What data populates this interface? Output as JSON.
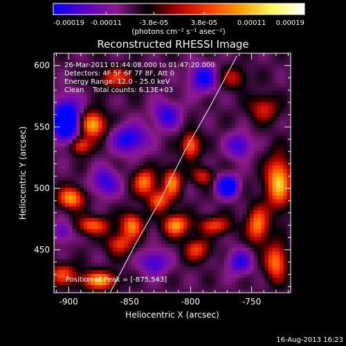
{
  "chart_data": {
    "type": "heatmap",
    "title": "Reconstructed RHESSI Image",
    "xlabel": "Heliocentric X (arcsec)",
    "ylabel": "Heliocentric Y (arcsec)",
    "xlim": [
      -912,
      -718
    ],
    "ylim": [
      415,
      610
    ],
    "x_ticks": [
      -900,
      -850,
      -800,
      -750
    ],
    "x_tick_labels": [
      "-900",
      "-850",
      "-800",
      "-750"
    ],
    "y_ticks": [
      450,
      500,
      550,
      600
    ],
    "y_tick_labels": [
      "450",
      "500",
      "550",
      "600"
    ],
    "colorbar": {
      "range": [
        -0.00019,
        0.00019
      ],
      "ticks": [
        -0.00019,
        -0.00011,
        -3.8e-05,
        3.8e-05,
        0.00011,
        0.00019
      ],
      "tick_labels": [
        "-0.00019",
        "-0.00011",
        "-3.8e-05",
        "3.8e-05",
        "0.00011",
        "0.00019"
      ],
      "unit_label": "(photons cm⁻² s⁻¹ asec⁻²)",
      "colors": [
        "#0000ff",
        "#5a00c8",
        "#8c1a8c",
        "#000000",
        "#b40000",
        "#ff4000",
        "#ffa000",
        "#ffff60",
        "#ffffff"
      ]
    },
    "limb_curve": {
      "points": [
        [
          -866,
          415
        ],
        [
          -845,
          455
        ],
        [
          -825,
          490
        ],
        [
          -805,
          530
        ],
        [
          -785,
          565
        ],
        [
          -762,
          608
        ]
      ]
    },
    "blobs": [
      {
        "x": -902,
        "y": 555,
        "amp": -1.0,
        "sx": 8,
        "sy": 12
      },
      {
        "x": -880,
        "y": 552,
        "amp": 1.0,
        "sx": 7,
        "sy": 7
      },
      {
        "x": -890,
        "y": 535,
        "amp": 0.7,
        "sx": 6,
        "sy": 5
      },
      {
        "x": -898,
        "y": 492,
        "amp": 0.9,
        "sx": 7,
        "sy": 6
      },
      {
        "x": -880,
        "y": 470,
        "amp": 0.7,
        "sx": 9,
        "sy": 5
      },
      {
        "x": -858,
        "y": 455,
        "amp": 0.6,
        "sx": 7,
        "sy": 6
      },
      {
        "x": -905,
        "y": 430,
        "amp": 0.6,
        "sx": 8,
        "sy": 6
      },
      {
        "x": -875,
        "y": 425,
        "amp": 0.9,
        "sx": 10,
        "sy": 5
      },
      {
        "x": -848,
        "y": 470,
        "amp": 0.8,
        "sx": 6,
        "sy": 7
      },
      {
        "x": -838,
        "y": 505,
        "amp": 0.8,
        "sx": 6,
        "sy": 7
      },
      {
        "x": -826,
        "y": 490,
        "amp": 0.7,
        "sx": 6,
        "sy": 6
      },
      {
        "x": -815,
        "y": 505,
        "amp": 0.8,
        "sx": 5,
        "sy": 8
      },
      {
        "x": -800,
        "y": 535,
        "amp": 0.8,
        "sx": 5,
        "sy": 7
      },
      {
        "x": -812,
        "y": 470,
        "amp": 0.9,
        "sx": 7,
        "sy": 6
      },
      {
        "x": -795,
        "y": 450,
        "amp": 0.6,
        "sx": 7,
        "sy": 6
      },
      {
        "x": -780,
        "y": 470,
        "amp": 0.6,
        "sx": 9,
        "sy": 5
      },
      {
        "x": -790,
        "y": 510,
        "amp": 0.5,
        "sx": 6,
        "sy": 5
      },
      {
        "x": -745,
        "y": 470,
        "amp": 0.8,
        "sx": 6,
        "sy": 10
      },
      {
        "x": -728,
        "y": 505,
        "amp": 1.0,
        "sx": 7,
        "sy": 14
      },
      {
        "x": -730,
        "y": 440,
        "amp": 0.8,
        "sx": 6,
        "sy": 10
      },
      {
        "x": -740,
        "y": 565,
        "amp": 0.5,
        "sx": 8,
        "sy": 7
      },
      {
        "x": -765,
        "y": 590,
        "amp": 0.4,
        "sx": 8,
        "sy": 6
      },
      {
        "x": -860,
        "y": 590,
        "amp": 0.5,
        "sx": 12,
        "sy": 6
      },
      {
        "x": -770,
        "y": 502,
        "amp": -0.9,
        "sx": 6,
        "sy": 6
      },
      {
        "x": -850,
        "y": 540,
        "amp": -0.6,
        "sx": 10,
        "sy": 8
      },
      {
        "x": -870,
        "y": 505,
        "amp": -0.5,
        "sx": 8,
        "sy": 8
      },
      {
        "x": -790,
        "y": 590,
        "amp": -0.6,
        "sx": 8,
        "sy": 8
      },
      {
        "x": -830,
        "y": 440,
        "amp": -0.5,
        "sx": 8,
        "sy": 7
      },
      {
        "x": -760,
        "y": 440,
        "amp": -0.5,
        "sx": 7,
        "sy": 7
      },
      {
        "x": -905,
        "y": 465,
        "amp": -0.4,
        "sx": 6,
        "sy": 6
      },
      {
        "x": -760,
        "y": 535,
        "amp": -0.5,
        "sx": 7,
        "sy": 7
      },
      {
        "x": -820,
        "y": 560,
        "amp": -0.5,
        "sx": 8,
        "sy": 8
      }
    ]
  },
  "annotations": {
    "time_range": "26-Mar-2011 01:44:08.000 to 01:47:20.000",
    "detectors": "Detectors: 4F 5F 6F 7F 8F, Att 0",
    "energy_range": "Energy Range: 12.0 - 25.0 keV",
    "clean_line": "Clean    Total counts: 6.13E+03",
    "peak_position": "Position of Peak = [-875,543]"
  },
  "footer": {
    "timestamp": "16-Aug-2013 16:23"
  }
}
